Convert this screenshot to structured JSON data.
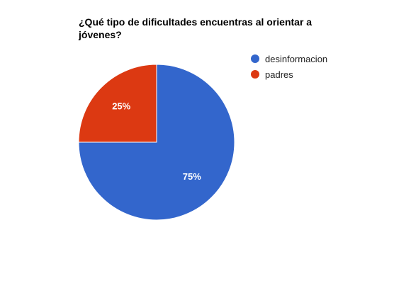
{
  "chart_data": {
    "type": "pie",
    "title": "¿Qué tipo de dificultades encuentras al orientar a jóvenes?",
    "categories": [
      "desinformacion",
      "padres"
    ],
    "values": [
      75,
      25
    ],
    "labels": [
      "75%",
      "25%"
    ],
    "colors": [
      "#3366cc",
      "#dc3912"
    ],
    "legend": "right",
    "start_angle": 0,
    "direction": "clockwise"
  }
}
